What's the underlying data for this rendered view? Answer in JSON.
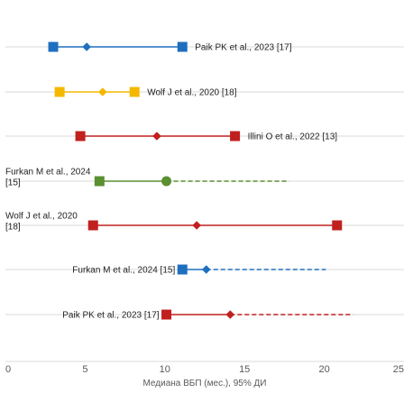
{
  "chart_data": {
    "type": "forest",
    "xlabel": "Медиана ВБП (мес.), 95% ДИ",
    "xlim": [
      0,
      25
    ],
    "xticks": [
      0,
      5,
      10,
      15,
      20,
      25
    ],
    "xtick_labels": [
      "0",
      "5",
      "10",
      "15",
      "20",
      "25"
    ],
    "grid": "horizontal",
    "rows": [
      {
        "label_lines": [
          "Paik PK et al., 2023 [17]"
        ],
        "label_side": "right",
        "color": "#1F6FBF",
        "ci_low": 3.0,
        "ci_high": 11.1,
        "ci_solid_to": 11.1,
        "ci_dashed_to": null,
        "left_marker": "square",
        "median": 5.1,
        "median_marker": "diamond",
        "right_marker": "square",
        "right_value": 11.1
      },
      {
        "label_lines": [
          "Wolf J et al., 2020 [18]"
        ],
        "label_side": "right",
        "color": "#F5B800",
        "ci_low": 3.4,
        "ci_high": 8.1,
        "ci_solid_to": 8.1,
        "ci_dashed_to": null,
        "left_marker": "square",
        "median": 6.1,
        "median_marker": "diamond",
        "right_marker": "square",
        "right_value": 8.1
      },
      {
        "label_lines": [
          "Illini O et al., 2022 [13]"
        ],
        "label_side": "right",
        "color": "#C0201E",
        "ci_low": 4.7,
        "ci_high": 14.4,
        "ci_solid_to": 14.4,
        "ci_dashed_to": null,
        "left_marker": "square",
        "median": 9.5,
        "median_marker": "diamond",
        "right_marker": "square",
        "right_value": 14.4
      },
      {
        "label_lines": [
          "Furkan M et al., 2024",
          "[15]"
        ],
        "label_side": "left",
        "color": "#5A8F32",
        "ci_low": 5.9,
        "ci_high": 17.8,
        "ci_solid_to": 10.1,
        "ci_dashed_to": 17.8,
        "left_marker": "square",
        "median": 10.1,
        "median_marker": "circle",
        "right_marker": null,
        "right_value": null
      },
      {
        "label_lines": [
          "Wolf J et al., 2020",
          "[18]"
        ],
        "label_side": "left",
        "color": "#C0201E",
        "ci_low": 5.5,
        "ci_high": 20.8,
        "ci_solid_to": 20.8,
        "ci_dashed_to": null,
        "left_marker": "square",
        "median": 12.0,
        "median_marker": "diamond",
        "right_marker": "square",
        "right_value": 20.8
      },
      {
        "label_lines": [
          "Furkan M et al., 2024 [15]"
        ],
        "label_side": "left",
        "color": "#1F6FBF",
        "ci_low": 11.1,
        "ci_high": 20.1,
        "ci_solid_to": 12.6,
        "ci_dashed_to": 20.1,
        "left_marker": "square",
        "median": 12.6,
        "median_marker": "diamond",
        "right_marker": null,
        "right_value": null
      },
      {
        "label_lines": [
          "Paik PK et al., 2023 [17]"
        ],
        "label_side": "left",
        "color": "#C0201E",
        "ci_low": 10.1,
        "ci_high": 21.8,
        "ci_solid_to": 14.1,
        "ci_dashed_to": 21.8,
        "left_marker": "square",
        "median": 14.1,
        "median_marker": "diamond",
        "right_marker": null,
        "right_value": null
      }
    ]
  }
}
